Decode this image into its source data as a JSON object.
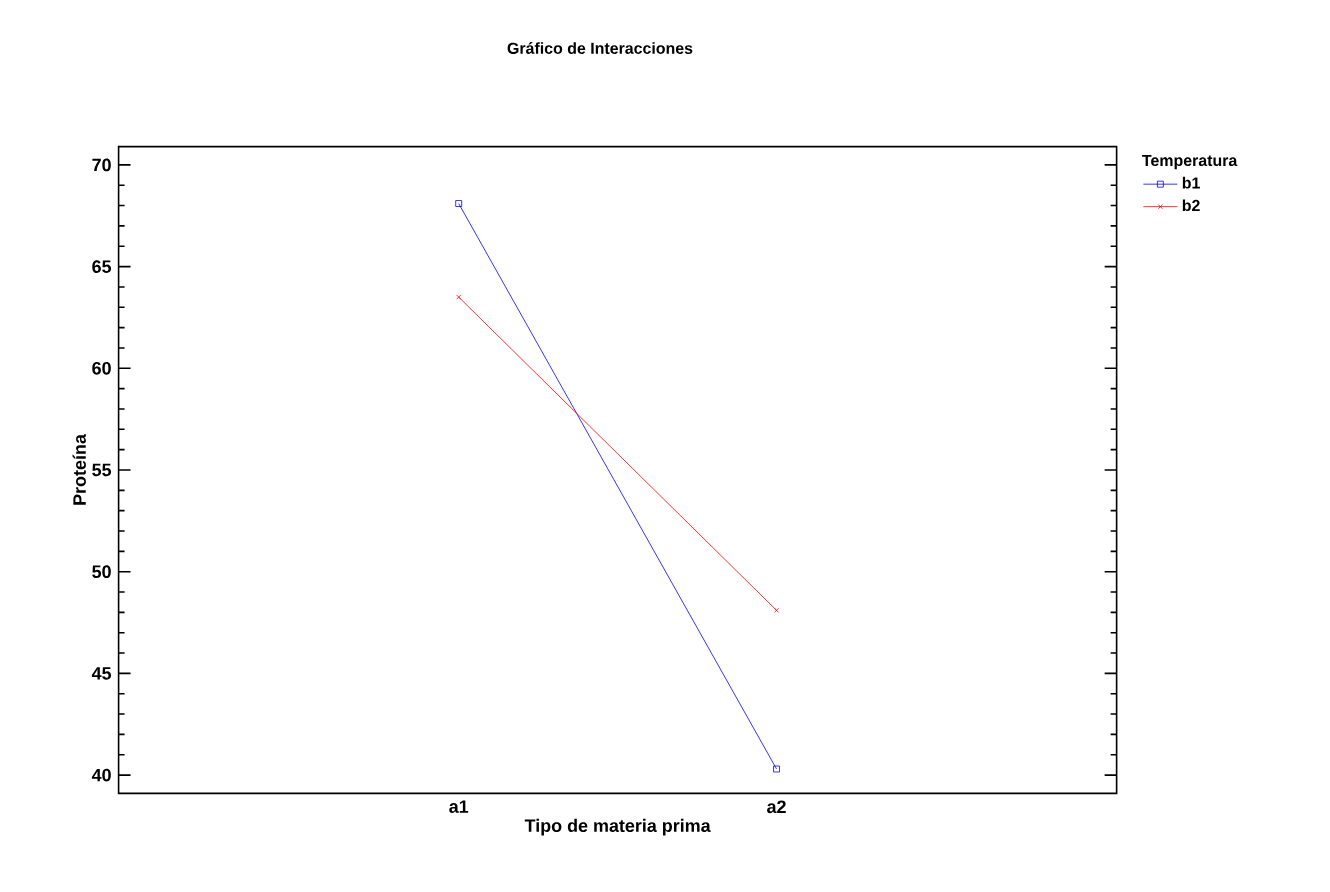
{
  "chart_data": {
    "type": "line",
    "title": "Gráfico de Interacciones",
    "xlabel": "Tipo de materia prima",
    "ylabel": "Proteína",
    "legend_title": "Temperatura",
    "categories": [
      "a1",
      "a2"
    ],
    "series": [
      {
        "name": "b1",
        "color": "#0000ff",
        "marker": "square",
        "values": [
          68.1,
          40.3
        ]
      },
      {
        "name": "b2",
        "color": "#ff0000",
        "marker": "cross",
        "values": [
          63.5,
          48.1
        ]
      }
    ],
    "ylim": [
      39.1,
      70.9
    ],
    "yticks": [
      40,
      45,
      50,
      55,
      60,
      65,
      70
    ],
    "legend": "right",
    "grid": false
  }
}
